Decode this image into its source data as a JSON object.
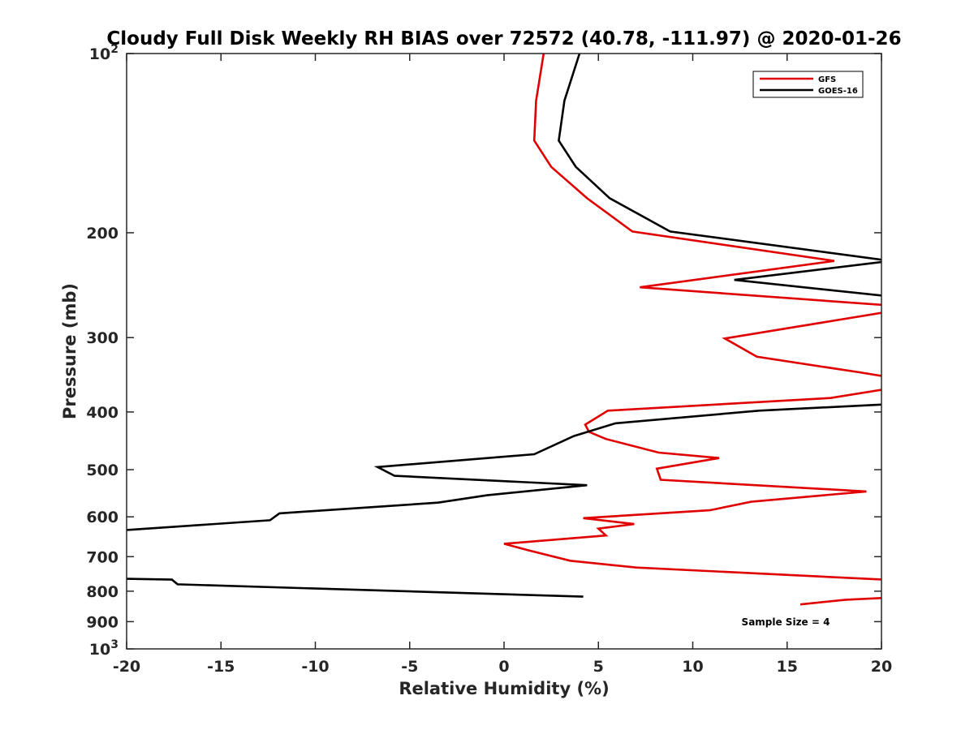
{
  "chart_data": {
    "type": "line",
    "title": "Cloudy Full Disk Weekly RH BIAS over 72572 (40.78, -111.97) @ 2020-01-26",
    "xlabel": "Relative Humidity (%)",
    "ylabel": "Pressure (mb)",
    "xlim": [
      -20,
      20
    ],
    "ylim": [
      100,
      1000
    ],
    "yscale": "log",
    "y_reversed": true,
    "x_ticks": [
      -20,
      -15,
      -10,
      -5,
      0,
      5,
      10,
      15,
      20
    ],
    "x_tick_labels": [
      "-20",
      "-15",
      "-10",
      "-5",
      "0",
      "5",
      "10",
      "15",
      "20"
    ],
    "y_ticks": [
      {
        "value": 100,
        "base": "10",
        "exp": "2"
      },
      {
        "value": 200,
        "label": "200"
      },
      {
        "value": 300,
        "label": "300"
      },
      {
        "value": 400,
        "label": "400"
      },
      {
        "value": 500,
        "label": "500"
      },
      {
        "value": 600,
        "label": "600"
      },
      {
        "value": 700,
        "label": "700"
      },
      {
        "value": 800,
        "label": "800"
      },
      {
        "value": 900,
        "label": "900"
      },
      {
        "value": 1000,
        "base": "10",
        "exp": "3"
      }
    ],
    "legend": {
      "position": "top-right",
      "entries": [
        "GFS",
        "GOES-16"
      ]
    },
    "annotation": "Sample Size = 4",
    "series": [
      {
        "name": "GFS",
        "color": "#e00000",
        "segments": [
          [
            [
              2.1,
              100
            ],
            [
              1.7,
              120
            ],
            [
              1.6,
              140
            ],
            [
              2.5,
              155
            ],
            [
              4.4,
              175
            ],
            [
              6.8,
              199
            ],
            [
              17.5,
              223
            ],
            [
              7.2,
              247
            ],
            [
              20.5,
              265
            ],
            [
              20.5,
              271
            ],
            [
              11.7,
              301
            ],
            [
              13.4,
              323
            ],
            [
              18.8,
              343
            ],
            [
              20.5,
              350
            ],
            [
              20.5,
              365
            ],
            [
              17.3,
              379
            ],
            [
              5.5,
              398
            ],
            [
              4.3,
              420
            ],
            [
              4.5,
              432
            ],
            [
              5.4,
              444
            ],
            [
              8.2,
              468
            ],
            [
              11.4,
              478
            ],
            [
              8.1,
              498
            ],
            [
              8.3,
              520
            ],
            [
              19.2,
              544
            ],
            [
              13.1,
              566
            ],
            [
              10.9,
              585
            ],
            [
              4.2,
              603
            ],
            [
              6.9,
              617
            ],
            [
              5.0,
              628
            ],
            [
              5.4,
              645
            ],
            [
              0.0,
              666
            ],
            [
              1.3,
              683
            ],
            [
              3.5,
              711
            ],
            [
              7.0,
              730
            ],
            [
              20.5,
              766
            ]
          ],
          [
            [
              20.5,
              820
            ],
            [
              18.1,
              827
            ],
            [
              15.7,
              842
            ]
          ]
        ]
      },
      {
        "name": "GOES-16",
        "color": "#000000",
        "segments": [
          [
            [
              4.0,
              100
            ],
            [
              3.2,
              120
            ],
            [
              2.9,
              140
            ],
            [
              3.8,
              155
            ],
            [
              5.6,
              175
            ],
            [
              8.8,
              199
            ],
            [
              20.5,
              223
            ],
            [
              12.2,
              240
            ],
            [
              20.5,
              256
            ]
          ],
          [
            [
              20.5,
              388
            ],
            [
              13.5,
              398
            ],
            [
              5.9,
              418
            ],
            [
              3.7,
              439
            ],
            [
              1.6,
              471
            ],
            [
              -6.7,
              495
            ],
            [
              -5.8,
              512
            ],
            [
              4.4,
              531
            ],
            [
              -0.9,
              552
            ],
            [
              -3.5,
              568
            ],
            [
              -11.9,
              592
            ],
            [
              -12.4,
              608
            ],
            [
              -20.5,
              633
            ]
          ],
          [
            [
              -20.5,
              762
            ],
            [
              -17.6,
              765
            ],
            [
              -17.3,
              779
            ],
            [
              4.2,
              817
            ]
          ]
        ]
      }
    ]
  }
}
